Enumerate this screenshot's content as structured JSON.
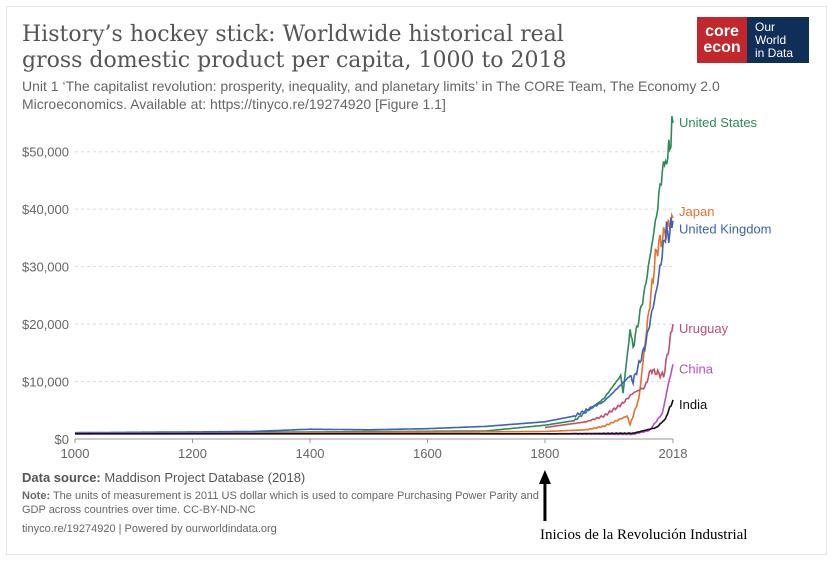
{
  "header": {
    "title": "History’s hockey stick: Worldwide historical real gross domestic product per capita, 1000 to 2018",
    "subtitle": "Unit 1 ‘The capitalist revolution: prosperity, inequality, and planetary limits’ in The CORE Team, The Economy 2.0 Microeconomics. Available at: https://tinyco.re/19274920 [Figure 1.1]",
    "logo_core_line1": "core",
    "logo_core_line2": "econ",
    "logo_owid_line1": "Our World",
    "logo_owid_line2": "in Data"
  },
  "footer": {
    "source_label": "Data source:",
    "source_text": " Maddison Project Database (2018)",
    "note_label": "Note:",
    "note_text": " The units of measurement is 2011 US dollar which is used to compare Purchasing Power Parity and GDP across countries over time. CC-BY-ND-NC",
    "credit": "tinyco.re/19274920 | Powered by ourworldindata.org"
  },
  "annotation": {
    "text": "Inicios de la Revolución Industrial",
    "x": 1800
  },
  "colors": {
    "United States": "#2e8b57",
    "Japan": "#e8702a",
    "United Kingdom": "#3b63b8",
    "Uruguay": "#c0506e",
    "China": "#b452c8",
    "India": "#111111",
    "grid": "#dddddd",
    "axis_text": "#666666"
  },
  "chart_data": {
    "type": "line",
    "xlim": [
      1000,
      2018
    ],
    "ylim": [
      0,
      55000
    ],
    "x_ticks": [
      1000,
      1200,
      1400,
      1600,
      1800,
      2018
    ],
    "x_tick_labels": [
      "1000",
      "1200",
      "1400",
      "1600",
      "1800",
      "2018"
    ],
    "y_ticks": [
      0,
      10000,
      20000,
      30000,
      40000,
      50000
    ],
    "y_tick_labels": [
      "$0",
      "$10,000",
      "$20,000",
      "$30,000",
      "$40,000",
      "$50,000"
    ],
    "grid": true,
    "legend": "right-end labels",
    "series": [
      {
        "name": "United States",
        "points": [
          [
            1000,
            1000
          ],
          [
            1700,
            1400
          ],
          [
            1800,
            2400
          ],
          [
            1850,
            3200
          ],
          [
            1900,
            7000
          ],
          [
            1929,
            11000
          ],
          [
            1933,
            8000
          ],
          [
            1945,
            19000
          ],
          [
            1950,
            16000
          ],
          [
            1970,
            26000
          ],
          [
            1990,
            39000
          ],
          [
            2000,
            47000
          ],
          [
            2009,
            49000
          ],
          [
            2018,
            55000
          ]
        ]
      },
      {
        "name": "Japan",
        "points": [
          [
            1000,
            900
          ],
          [
            1800,
            1300
          ],
          [
            1870,
            1600
          ],
          [
            1900,
            2200
          ],
          [
            1940,
            4000
          ],
          [
            1945,
            2500
          ],
          [
            1960,
            7000
          ],
          [
            1973,
            19000
          ],
          [
            1990,
            33000
          ],
          [
            2000,
            35000
          ],
          [
            2018,
            38500
          ]
        ]
      },
      {
        "name": "United Kingdom",
        "points": [
          [
            1000,
            1100
          ],
          [
            1300,
            1300
          ],
          [
            1400,
            1700
          ],
          [
            1500,
            1600
          ],
          [
            1600,
            1800
          ],
          [
            1700,
            2200
          ],
          [
            1800,
            3000
          ],
          [
            1850,
            4000
          ],
          [
            1900,
            6500
          ],
          [
            1945,
            11000
          ],
          [
            1950,
            10000
          ],
          [
            1970,
            16000
          ],
          [
            1990,
            26000
          ],
          [
            2007,
            37000
          ],
          [
            2009,
            35000
          ],
          [
            2018,
            38000
          ]
        ]
      },
      {
        "name": "Uruguay",
        "points": [
          [
            1800,
            2000
          ],
          [
            1870,
            3000
          ],
          [
            1900,
            4000
          ],
          [
            1930,
            6000
          ],
          [
            1950,
            8000
          ],
          [
            1970,
            9000
          ],
          [
            1980,
            12000
          ],
          [
            2002,
            11000
          ],
          [
            2018,
            20000
          ]
        ]
      },
      {
        "name": "China",
        "points": [
          [
            1000,
            1000
          ],
          [
            1800,
            900
          ],
          [
            1950,
            800
          ],
          [
            1978,
            1500
          ],
          [
            2000,
            4500
          ],
          [
            2010,
            9500
          ],
          [
            2018,
            13000
          ]
        ]
      },
      {
        "name": "India",
        "points": [
          [
            1000,
            900
          ],
          [
            1800,
            900
          ],
          [
            1950,
            1000
          ],
          [
            1990,
            2000
          ],
          [
            2005,
            3500
          ],
          [
            2018,
            6800
          ]
        ]
      }
    ]
  }
}
